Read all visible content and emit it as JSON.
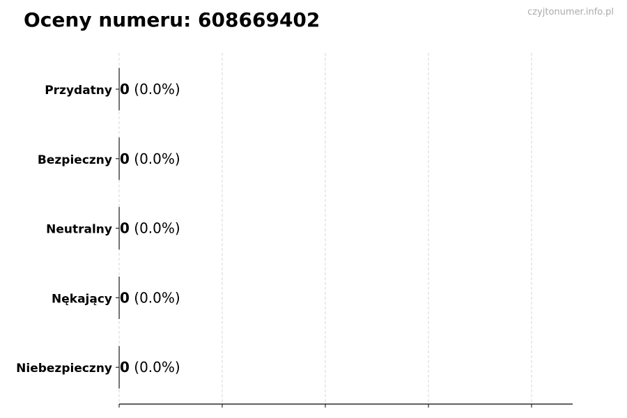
{
  "chart_data": {
    "type": "bar",
    "orientation": "horizontal",
    "title": "Oceny numeru: 608669402",
    "categories": [
      "Przydatny",
      "Bezpieczny",
      "Neutralny",
      "Nękający",
      "Niebezpieczny"
    ],
    "values": [
      0,
      0,
      0,
      0,
      0
    ],
    "data_labels": [
      {
        "count": "0",
        "percent": "(0.0%)"
      },
      {
        "count": "0",
        "percent": "(0.0%)"
      },
      {
        "count": "0",
        "percent": "(0.0%)"
      },
      {
        "count": "0",
        "percent": "(0.0%)"
      },
      {
        "count": "0",
        "percent": "(0.0%)"
      }
    ],
    "xlabel": "",
    "ylabel": "",
    "x_tick_labels_shown": false,
    "grid": "vertical dashed",
    "colors": {
      "bar_edge": "#000000",
      "grid": "#cccccc",
      "watermark": "#aaaaaa"
    }
  },
  "watermark": "czyjtonumer.info.pl"
}
